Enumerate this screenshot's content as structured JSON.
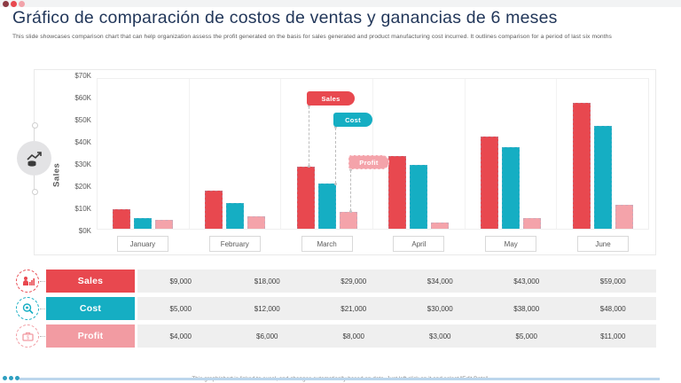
{
  "slide": {
    "title": "Gráfico de comparación de costos de ventas y ganancias de 6 meses",
    "subtitle": "This slide showcases comparison chart that can help organization assess the profit generated on the basis for sales generated and product manufacturing cost incurred. It outlines comparison for a period of last six months",
    "footer_note": "This graph/chart is linked to excel, and changes automatically based on data. Just left click on it and select \"Edit Data\".",
    "accent_dots": [
      "#8C3A43",
      "#E8484F",
      "#F2A3AA"
    ],
    "bottom_bar_color": "#BCD6EC"
  },
  "chart_data": {
    "type": "bar",
    "title": "",
    "xlabel": "",
    "ylabel": "Sales",
    "categories": [
      "January",
      "February",
      "March",
      "April",
      "May",
      "June"
    ],
    "series": [
      {
        "name": "Sales",
        "color": "#E8484F",
        "values": [
          9000,
          18000,
          29000,
          34000,
          43000,
          59000
        ]
      },
      {
        "name": "Cost",
        "color": "#15AEC3",
        "values": [
          5000,
          12000,
          21000,
          30000,
          38000,
          48000
        ]
      },
      {
        "name": "Profit",
        "color": "#F4A3AA",
        "values": [
          4000,
          6000,
          8000,
          3000,
          5000,
          11000
        ]
      }
    ],
    "ylim": [
      0,
      70000
    ],
    "y_ticks": [
      "$70K",
      "$60K",
      "$50K",
      "$40K",
      "$30K",
      "$20K",
      "$10K",
      "$0K"
    ],
    "grid": "vertical-month-separators",
    "legend_position": "callout-tags-over-march"
  },
  "table": {
    "rows": [
      {
        "label": "Sales",
        "color": "#E8484F",
        "icon": "salesperson-chart-icon",
        "values": [
          "$9,000",
          "$18,000",
          "$29,000",
          "$34,000",
          "$43,000",
          "$59,000"
        ]
      },
      {
        "label": "Cost",
        "color": "#15AEC3",
        "icon": "magnifier-gear-icon",
        "values": [
          "$5,000",
          "$12,000",
          "$21,000",
          "$30,000",
          "$38,000",
          "$48,000"
        ]
      },
      {
        "label": "Profit",
        "color": "#F29BA2",
        "icon": "briefcase-money-icon",
        "values": [
          "$4,000",
          "$6,000",
          "$8,000",
          "$3,000",
          "$5,000",
          "$11,000"
        ]
      }
    ]
  }
}
